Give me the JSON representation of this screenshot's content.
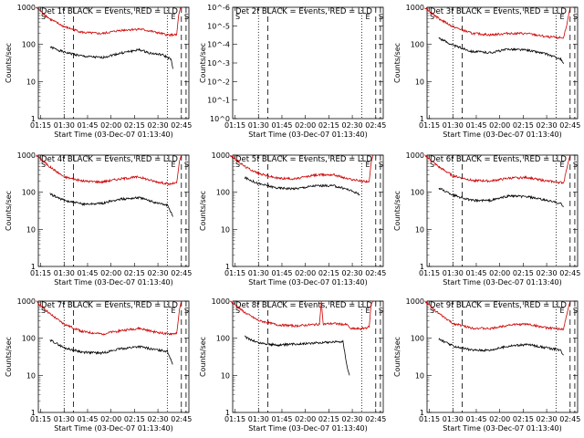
{
  "chart_data": [
    {
      "type": "line",
      "title": "Det 1f BLACK = Events, RED = LLD",
      "ylabel": "Counts/sec",
      "xlabel": "Start Time (03-Dec-07 01:13:40)",
      "x_ticks": [
        "01:15",
        "01:30",
        "01:45",
        "02:00",
        "02:15",
        "02:30",
        "02:45"
      ],
      "y_ticks": [
        "1",
        "10",
        "100",
        "1000"
      ],
      "yscale": "log",
      "ylim": [
        1,
        1000
      ],
      "markers": [
        "S",
        "E",
        "S"
      ],
      "series": [
        {
          "color": "#000000",
          "values": [
            [
              1.35,
              85
            ],
            [
              1.5,
              62
            ],
            [
              1.7,
              48
            ],
            [
              1.9,
              44
            ],
            [
              2.1,
              58
            ],
            [
              2.3,
              72
            ],
            [
              2.42,
              58
            ],
            [
              2.55,
              52
            ],
            [
              2.64,
              40
            ],
            [
              2.66,
              22
            ]
          ]
        },
        {
          "color": "#cc0000",
          "values": [
            [
              1.2,
              1000
            ],
            [
              1.35,
              480
            ],
            [
              1.5,
              300
            ],
            [
              1.7,
              210
            ],
            [
              1.9,
              195
            ],
            [
              2.1,
              240
            ],
            [
              2.3,
              260
            ],
            [
              2.45,
              220
            ],
            [
              2.6,
              180
            ],
            [
              2.7,
              180
            ],
            [
              2.72,
              600
            ],
            [
              2.74,
              1000
            ]
          ]
        }
      ]
    },
    {
      "type": "line",
      "title": "Det 2f BLACK = Events, RED = LLD",
      "ylabel": "Counts/sec",
      "xlabel": "Start Time (03-Dec-07 01:13:40)",
      "x_ticks": [
        "01:15",
        "01:30",
        "01:45",
        "02:00",
        "02:15",
        "02:30",
        "02:45"
      ],
      "y_ticks": [
        "10^0",
        "10^-1",
        "10^-2",
        "10^-3",
        "10^-4",
        "10^-5",
        "10^-6"
      ],
      "yscale": "log",
      "markers": [
        "S",
        "E",
        "S"
      ],
      "series": []
    },
    {
      "type": "line",
      "title": "Det 3f BLACK = Events, RED = LLD",
      "ylabel": "Counts/sec",
      "xlabel": "Start Time (03-Dec-07 01:13:40)",
      "x_ticks": [
        "01:15",
        "01:30",
        "01:45",
        "02:00",
        "02:15",
        "02:30",
        "02:45"
      ],
      "y_ticks": [
        "1",
        "10",
        "100",
        "1000"
      ],
      "yscale": "log",
      "ylim": [
        1,
        1000
      ],
      "markers": [
        "S",
        "E",
        "S"
      ],
      "series": [
        {
          "color": "#000000",
          "values": [
            [
              1.35,
              150
            ],
            [
              1.5,
              95
            ],
            [
              1.7,
              65
            ],
            [
              1.9,
              60
            ],
            [
              2.1,
              75
            ],
            [
              2.3,
              70
            ],
            [
              2.5,
              55
            ],
            [
              2.65,
              40
            ],
            [
              2.68,
              30
            ]
          ]
        },
        {
          "color": "#cc0000",
          "values": [
            [
              1.2,
              1000
            ],
            [
              1.35,
              500
            ],
            [
              1.5,
              300
            ],
            [
              1.7,
              200
            ],
            [
              1.9,
              180
            ],
            [
              2.1,
              200
            ],
            [
              2.3,
              195
            ],
            [
              2.5,
              160
            ],
            [
              2.68,
              150
            ],
            [
              2.72,
              400
            ],
            [
              2.75,
              1000
            ]
          ]
        }
      ]
    },
    {
      "type": "line",
      "title": "Det 4f BLACK = Events, RED = LLD",
      "ylabel": "Counts/sec",
      "xlabel": "Start Time (03-Dec-07 01:13:40)",
      "x_ticks": [
        "01:15",
        "01:30",
        "01:45",
        "02:00",
        "02:15",
        "02:30",
        "02:45"
      ],
      "y_ticks": [
        "1",
        "10",
        "100",
        "1000"
      ],
      "yscale": "log",
      "ylim": [
        1,
        1000
      ],
      "markers": [
        "S",
        "E",
        "S"
      ],
      "series": [
        {
          "color": "#000000",
          "values": [
            [
              1.35,
              90
            ],
            [
              1.5,
              60
            ],
            [
              1.7,
              48
            ],
            [
              1.9,
              50
            ],
            [
              2.1,
              65
            ],
            [
              2.3,
              72
            ],
            [
              2.45,
              55
            ],
            [
              2.6,
              45
            ],
            [
              2.66,
              22
            ]
          ]
        },
        {
          "color": "#cc0000",
          "values": [
            [
              1.2,
              1000
            ],
            [
              1.35,
              480
            ],
            [
              1.5,
              260
            ],
            [
              1.7,
              200
            ],
            [
              1.9,
              190
            ],
            [
              2.1,
              230
            ],
            [
              2.3,
              260
            ],
            [
              2.45,
              200
            ],
            [
              2.62,
              165
            ],
            [
              2.7,
              180
            ],
            [
              2.73,
              700
            ],
            [
              2.75,
              1000
            ]
          ]
        }
      ]
    },
    {
      "type": "line",
      "title": "Det 5f BLACK = Events, RED = LLD",
      "ylabel": "Counts/sec",
      "xlabel": "Start Time (03-Dec-07 01:13:40)",
      "x_ticks": [
        "01:15",
        "01:30",
        "01:45",
        "02:00",
        "02:15",
        "02:30",
        "02:45"
      ],
      "y_ticks": [
        "1",
        "10",
        "100",
        "1000"
      ],
      "yscale": "log",
      "ylim": [
        1,
        1000
      ],
      "markers": [
        "S",
        "E",
        "S"
      ],
      "series": [
        {
          "color": "#000000",
          "values": [
            [
              1.35,
              250
            ],
            [
              1.5,
              170
            ],
            [
              1.7,
              130
            ],
            [
              1.9,
              125
            ],
            [
              2.1,
              150
            ],
            [
              2.3,
              150
            ],
            [
              2.45,
              120
            ],
            [
              2.55,
              95
            ],
            [
              2.58,
              85
            ]
          ]
        },
        {
          "color": "#cc0000",
          "values": [
            [
              1.2,
              1000
            ],
            [
              1.35,
              500
            ],
            [
              1.5,
              320
            ],
            [
              1.7,
              240
            ],
            [
              1.9,
              230
            ],
            [
              2.1,
              290
            ],
            [
              2.3,
              300
            ],
            [
              2.45,
              230
            ],
            [
              2.6,
              200
            ],
            [
              2.68,
              195
            ],
            [
              2.7,
              600
            ],
            [
              2.72,
              1000
            ]
          ]
        }
      ]
    },
    {
      "type": "line",
      "title": "Det 6f BLACK = Events, RED = LLD",
      "ylabel": "Counts/sec",
      "xlabel": "Start Time (03-Dec-07 01:13:40)",
      "x_ticks": [
        "01:15",
        "01:30",
        "01:45",
        "02:00",
        "02:15",
        "02:30",
        "02:45"
      ],
      "y_ticks": [
        "1",
        "10",
        "100",
        "1000"
      ],
      "yscale": "log",
      "ylim": [
        1,
        1000
      ],
      "markers": [
        "S",
        "E",
        "S"
      ],
      "series": [
        {
          "color": "#000000",
          "values": [
            [
              1.35,
              130
            ],
            [
              1.5,
              85
            ],
            [
              1.7,
              60
            ],
            [
              1.9,
              60
            ],
            [
              2.1,
              80
            ],
            [
              2.3,
              75
            ],
            [
              2.5,
              60
            ],
            [
              2.65,
              50
            ],
            [
              2.68,
              40
            ]
          ]
        },
        {
          "color": "#cc0000",
          "values": [
            [
              1.2,
              1000
            ],
            [
              1.35,
              480
            ],
            [
              1.5,
              280
            ],
            [
              1.7,
              210
            ],
            [
              1.9,
              200
            ],
            [
              2.1,
              240
            ],
            [
              2.3,
              250
            ],
            [
              2.5,
              200
            ],
            [
              2.68,
              180
            ],
            [
              2.72,
              500
            ],
            [
              2.75,
              1000
            ]
          ]
        }
      ]
    },
    {
      "type": "line",
      "title": "Det 7f BLACK = Events, RED = LLD",
      "ylabel": "Counts/sec",
      "xlabel": "Start Time (03-Dec-07 01:13:40)",
      "x_ticks": [
        "01:15",
        "01:30",
        "01:45",
        "02:00",
        "02:15",
        "02:30",
        "02:45"
      ],
      "y_ticks": [
        "1",
        "10",
        "100",
        "1000"
      ],
      "yscale": "log",
      "ylim": [
        1,
        1000
      ],
      "markers": [
        "S",
        "E",
        "S"
      ],
      "series": [
        {
          "color": "#000000",
          "values": [
            [
              1.35,
              90
            ],
            [
              1.5,
              55
            ],
            [
              1.7,
              42
            ],
            [
              1.9,
              40
            ],
            [
              2.1,
              52
            ],
            [
              2.3,
              60
            ],
            [
              2.45,
              50
            ],
            [
              2.6,
              45
            ],
            [
              2.66,
              20
            ]
          ]
        },
        {
          "color": "#cc0000",
          "values": [
            [
              1.2,
              1000
            ],
            [
              1.35,
              450
            ],
            [
              1.5,
              240
            ],
            [
              1.7,
              150
            ],
            [
              1.9,
              130
            ],
            [
              2.1,
              160
            ],
            [
              2.3,
              185
            ],
            [
              2.45,
              150
            ],
            [
              2.6,
              130
            ],
            [
              2.7,
              135
            ],
            [
              2.73,
              600
            ],
            [
              2.75,
              1000
            ]
          ]
        }
      ]
    },
    {
      "type": "line",
      "title": "Det 8f BLACK = Events, RED = LLD",
      "ylabel": "Counts/sec",
      "xlabel": "Start Time (03-Dec-07 01:13:40)",
      "x_ticks": [
        "01:15",
        "01:30",
        "01:45",
        "02:00",
        "02:15",
        "02:30",
        "02:45"
      ],
      "y_ticks": [
        "1",
        "10",
        "100",
        "1000"
      ],
      "yscale": "log",
      "ylim": [
        1,
        1000
      ],
      "markers": [
        "S",
        "E",
        "S"
      ],
      "series": [
        {
          "color": "#000000",
          "values": [
            [
              1.35,
              110
            ],
            [
              1.5,
              75
            ],
            [
              1.7,
              65
            ],
            [
              1.9,
              70
            ],
            [
              2.1,
              75
            ],
            [
              2.3,
              80
            ],
            [
              2.4,
              82
            ],
            [
              2.45,
              15
            ],
            [
              2.47,
              10
            ]
          ]
        },
        {
          "color": "#cc0000",
          "values": [
            [
              1.2,
              1000
            ],
            [
              1.35,
              500
            ],
            [
              1.5,
              300
            ],
            [
              1.7,
              230
            ],
            [
              1.9,
              215
            ],
            [
              2.05,
              230
            ],
            [
              2.15,
              240
            ],
            [
              2.17,
              1000
            ],
            [
              2.19,
              240
            ],
            [
              2.3,
              250
            ],
            [
              2.45,
              230
            ],
            [
              2.48,
              180
            ],
            [
              2.6,
              180
            ],
            [
              2.68,
              200
            ],
            [
              2.7,
              800
            ],
            [
              2.72,
              1000
            ]
          ]
        }
      ]
    },
    {
      "type": "line",
      "title": "Det 9f BLACK = Events, RED = LLD",
      "ylabel": "Counts/sec",
      "xlabel": "Start Time (03-Dec-07 01:13:40)",
      "x_ticks": [
        "01:15",
        "01:30",
        "01:45",
        "02:00",
        "02:15",
        "02:30",
        "02:45"
      ],
      "y_ticks": [
        "1",
        "10",
        "100",
        "1000"
      ],
      "yscale": "log",
      "ylim": [
        1,
        1000
      ],
      "markers": [
        "S",
        "E",
        "S"
      ],
      "series": [
        {
          "color": "#000000",
          "values": [
            [
              1.35,
              95
            ],
            [
              1.5,
              62
            ],
            [
              1.7,
              48
            ],
            [
              1.9,
              48
            ],
            [
              2.1,
              62
            ],
            [
              2.3,
              68
            ],
            [
              2.5,
              55
            ],
            [
              2.65,
              48
            ],
            [
              2.68,
              35
            ]
          ]
        },
        {
          "color": "#cc0000",
          "values": [
            [
              1.2,
              1000
            ],
            [
              1.35,
              460
            ],
            [
              1.5,
              250
            ],
            [
              1.7,
              190
            ],
            [
              1.9,
              180
            ],
            [
              2.1,
              230
            ],
            [
              2.3,
              240
            ],
            [
              2.5,
              190
            ],
            [
              2.68,
              175
            ],
            [
              2.72,
              500
            ],
            [
              2.75,
              1000
            ]
          ]
        }
      ]
    }
  ]
}
